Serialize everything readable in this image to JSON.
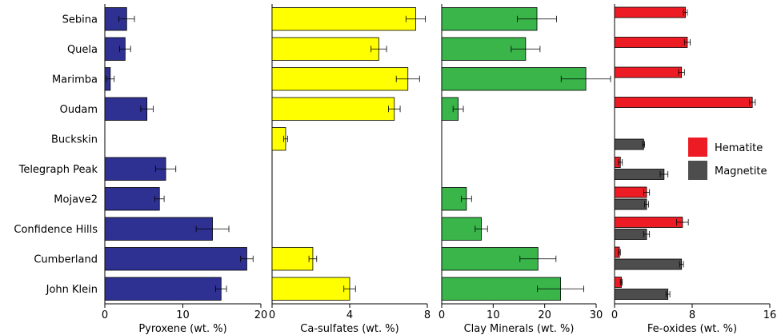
{
  "chart_data": {
    "type": "bar",
    "orientation": "horizontal",
    "categories": [
      "Sebina",
      "Quela",
      "Marimba",
      "Oudam",
      "Buckskin",
      "Telegraph Peak",
      "Mojave2",
      "Confidence Hills",
      "Cumberland",
      "John Klein"
    ],
    "panels": [
      {
        "xlabel": "Pyroxene (wt. %)",
        "xlim": [
          0,
          20
        ],
        "ticks": [
          0,
          10,
          20
        ],
        "tick_labels": [
          "0",
          "10",
          "20"
        ],
        "color": "#2e3192",
        "series": [
          {
            "values": [
              2.8,
              2.6,
              0.7,
              5.4,
              0,
              7.8,
              7.0,
              13.8,
              18.2,
              14.9
            ],
            "errors": [
              1.0,
              0.7,
              0.5,
              0.8,
              0,
              1.3,
              0.6,
              2.1,
              0.8,
              0.7
            ]
          }
        ]
      },
      {
        "xlabel": "Ca-sulfates (wt. %)",
        "xlim": [
          0,
          8
        ],
        "ticks": [
          0,
          4,
          8
        ],
        "tick_labels": [
          "0",
          "4",
          "8"
        ],
        "color": "#ffff00",
        "series": [
          {
            "values": [
              7.4,
              5.5,
              7.0,
              6.3,
              0.7,
              0,
              0,
              0,
              2.1,
              4.0
            ],
            "errors": [
              0.5,
              0.4,
              0.6,
              0.3,
              0.1,
              0,
              0,
              0,
              0.2,
              0.3
            ]
          }
        ]
      },
      {
        "xlabel": "Clay Minerals (wt. %)",
        "xlim": [
          0,
          30
        ],
        "ticks": [
          0,
          10,
          20,
          30
        ],
        "tick_labels": [
          "0",
          "10",
          "20",
          "30"
        ],
        "color": "#39b54a",
        "series": [
          {
            "values": [
              18.5,
              16.3,
              28.0,
              3.2,
              0,
              0,
              4.8,
              7.7,
              18.7,
              23.1
            ],
            "errors": [
              3.8,
              2.8,
              4.8,
              1.0,
              0,
              0,
              1.0,
              1.2,
              3.5,
              4.5
            ]
          }
        ]
      },
      {
        "xlabel": "Fe-oxides (wt. %)",
        "xlim": [
          0,
          16
        ],
        "ticks": [
          0,
          8,
          16
        ],
        "tick_labels": [
          "0",
          "8",
          "16"
        ],
        "legend": {
          "position": "right",
          "entries": [
            {
              "name": "Hematite",
              "color": "#ed1c24"
            },
            {
              "name": "Magnetite",
              "color": "#4d4d4d"
            }
          ]
        },
        "series": [
          {
            "name": "Hematite",
            "color": "#ed1c24",
            "values": [
              7.3,
              7.5,
              6.9,
              14.2,
              0,
              0.6,
              3.3,
              7.0,
              0.5,
              0.7
            ],
            "errors": [
              0.2,
              0.3,
              0.3,
              0.3,
              0,
              0.2,
              0.3,
              0.6,
              0.1,
              0.1
            ]
          },
          {
            "name": "Magnetite",
            "color": "#4d4d4d",
            "values": [
              0,
              0,
              0,
              0,
              3.0,
              5.1,
              3.3,
              3.3,
              6.9,
              5.5
            ],
            "errors": [
              0,
              0,
              0,
              0,
              0.1,
              0.4,
              0.2,
              0.3,
              0.2,
              0.2
            ]
          }
        ]
      }
    ]
  }
}
